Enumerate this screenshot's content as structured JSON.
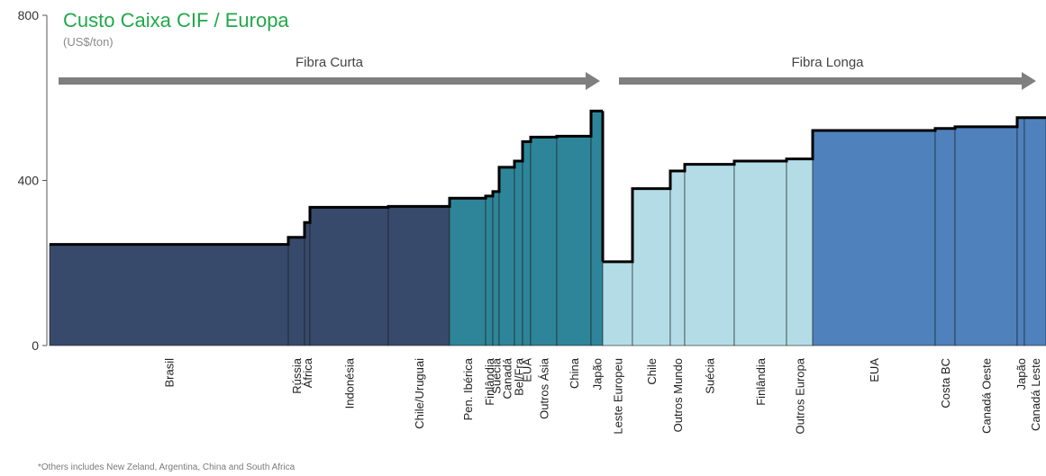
{
  "chart_data": {
    "type": "bar",
    "title": "Custo Caixa CIF / Europa",
    "subtitle": "(US$/ton)",
    "ylim": [
      0,
      800
    ],
    "yticks": [
      0,
      400,
      800
    ],
    "grid": false,
    "groups": [
      {
        "label": "Fibra Curta",
        "color": "#7f7f7f"
      },
      {
        "label": "Fibra Longa",
        "color": "#7f7f7f"
      }
    ],
    "colors": {
      "dark_navy": "#374a6c",
      "teal": "#2e8599",
      "light_blue": "#b3dce7",
      "mid_blue": "#4f81bd",
      "outline": "#000000",
      "title_green": "#22a84a"
    },
    "segments": [
      {
        "label": "Brasil",
        "value": 245,
        "width": 265,
        "group": "Fibra Curta",
        "color": "dark_navy"
      },
      {
        "label": "Rússia",
        "value": 262,
        "width": 18,
        "group": "Fibra Curta",
        "color": "dark_navy"
      },
      {
        "label": "África",
        "value": 298,
        "width": 6,
        "group": "Fibra Curta",
        "color": "dark_navy"
      },
      {
        "label": "Indonésia",
        "value": 335,
        "width": 87,
        "group": "Fibra Curta",
        "color": "dark_navy"
      },
      {
        "label": "Chile/Uruguai",
        "value": 337,
        "width": 68,
        "group": "Fibra Curta",
        "color": "dark_navy"
      },
      {
        "label": "Pen. Ibérica",
        "value": 357,
        "width": 40,
        "group": "Fibra Curta",
        "color": "teal"
      },
      {
        "label": "Finlândia",
        "value": 362,
        "width": 8,
        "group": "Fibra Curta",
        "color": "teal"
      },
      {
        "label": "Suécia",
        "value": 373,
        "width": 7,
        "group": "Fibra Curta",
        "color": "teal"
      },
      {
        "label": "Canadá",
        "value": 432,
        "width": 17,
        "group": "Fibra Curta",
        "color": "teal"
      },
      {
        "label": "Bel/Fra",
        "value": 447,
        "width": 9,
        "group": "Fibra Curta",
        "color": "teal"
      },
      {
        "label": "EUA",
        "value": 494,
        "width": 9,
        "group": "Fibra Curta",
        "color": "teal"
      },
      {
        "label": "Outros Ásia",
        "value": 505,
        "width": 29,
        "group": "Fibra Curta",
        "color": "teal"
      },
      {
        "label": "China",
        "value": 507,
        "width": 38,
        "group": "Fibra Curta",
        "color": "teal"
      },
      {
        "label": "Japão",
        "value": 568,
        "width": 13,
        "group": "Fibra Curta",
        "color": "teal"
      },
      {
        "label": "Leste Europeu",
        "value": 203,
        "width": 33,
        "group": "Fibra Longa",
        "color": "light_blue"
      },
      {
        "label": "Chile",
        "value": 380,
        "width": 42,
        "group": "Fibra Longa",
        "color": "light_blue"
      },
      {
        "label": "Outros Mundo",
        "value": 423,
        "width": 16,
        "group": "Fibra Longa",
        "color": "light_blue"
      },
      {
        "label": "Suécia",
        "value": 439,
        "width": 55,
        "group": "Fibra Longa",
        "color": "light_blue"
      },
      {
        "label": "Finlândia",
        "value": 447,
        "width": 58,
        "group": "Fibra Longa",
        "color": "light_blue"
      },
      {
        "label": "Outros Europa",
        "value": 452,
        "width": 29,
        "group": "Fibra Longa",
        "color": "light_blue"
      },
      {
        "label": "EUA",
        "value": 521,
        "width": 136,
        "group": "Fibra Longa",
        "color": "mid_blue"
      },
      {
        "label": "Costa BC",
        "value": 526,
        "width": 22,
        "group": "Fibra Longa",
        "color": "mid_blue"
      },
      {
        "label": "Canadá Oeste",
        "value": 530,
        "width": 69,
        "group": "Fibra Longa",
        "color": "mid_blue"
      },
      {
        "label": "Japão",
        "value": 552,
        "width": 8,
        "group": "Fibra Longa",
        "color": "mid_blue"
      },
      {
        "label": "Canadá Leste",
        "value": 552,
        "width": 24,
        "group": "Fibra Longa",
        "color": "mid_blue"
      }
    ],
    "footnote": "*Others includes  New Zeland, Argentina, China and South Africa"
  }
}
